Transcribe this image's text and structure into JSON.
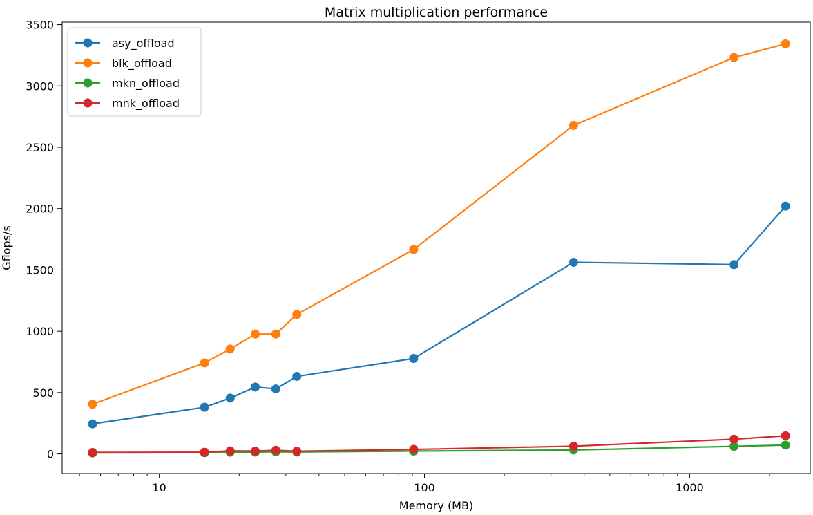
{
  "chart_data": {
    "type": "line",
    "title": "Matrix multiplication performance",
    "xlabel": "Memory (MB)",
    "ylabel": "Gflops/s",
    "xscale": "log",
    "xlim": [
      4.3,
      2850
    ],
    "ylim": [
      -160,
      3520
    ],
    "x_ticks": [
      10,
      100,
      1000
    ],
    "x_tick_labels": [
      "10",
      "100",
      "1000"
    ],
    "y_ticks": [
      0,
      500,
      1000,
      1500,
      2000,
      2500,
      3000,
      3500
    ],
    "y_tick_labels": [
      "0",
      "500",
      "1000",
      "1500",
      "2000",
      "2500",
      "3000",
      "3500"
    ],
    "legend_position": "top-left",
    "grid": false,
    "x": [
      5.6,
      14.8,
      18.5,
      23.0,
      27.5,
      33.0,
      91.0,
      365.0,
      1470.0,
      2300.0
    ],
    "series": [
      {
        "name": "asy_offload",
        "color": "#1f77b4",
        "values": [
          245,
          380,
          455,
          545,
          530,
          632,
          778,
          1562,
          1543,
          2020
        ]
      },
      {
        "name": "blk_offload",
        "color": "#ff7f0e",
        "values": [
          405,
          742,
          855,
          977,
          977,
          1137,
          1666,
          2678,
          3232,
          3343
        ]
      },
      {
        "name": "mkn_offload",
        "color": "#2ca02c",
        "values": [
          8,
          10,
          14,
          15,
          17,
          16,
          23,
          32,
          62,
          72
        ]
      },
      {
        "name": "mnk_offload",
        "color": "#d62728",
        "values": [
          12,
          14,
          25,
          23,
          30,
          22,
          37,
          63,
          120,
          148
        ]
      }
    ]
  }
}
